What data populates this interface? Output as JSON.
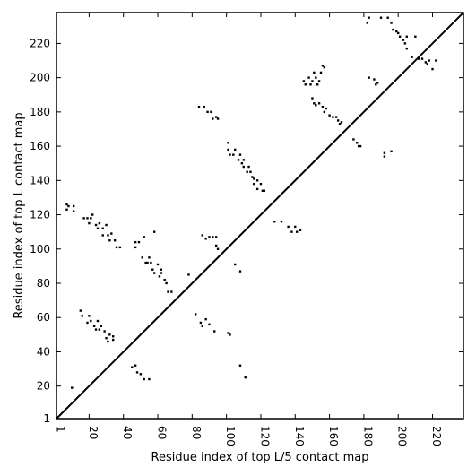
{
  "chart_data": {
    "type": "scatter",
    "title": "",
    "xlabel": "Residue index of top L/5 contact map",
    "ylabel": "Residue index of top L contact map",
    "xlim": [
      1,
      238
    ],
    "ylim": [
      1,
      238
    ],
    "x_ticks": [
      1,
      20,
      40,
      60,
      80,
      100,
      120,
      140,
      160,
      180,
      200,
      220
    ],
    "y_ticks": [
      1,
      20,
      40,
      60,
      80,
      100,
      120,
      140,
      160,
      180,
      200,
      220
    ],
    "grid": false,
    "legend": "none",
    "marker_color": "#000000",
    "diagonal": {
      "from": [
        1,
        1
      ],
      "to": [
        238,
        238
      ]
    },
    "series": [
      {
        "points_upper_left": [
          [
            7,
            126
          ],
          [
            7,
            123
          ],
          [
            8,
            125
          ],
          [
            11,
            125
          ],
          [
            11,
            122
          ],
          [
            17,
            118
          ],
          [
            19,
            118
          ],
          [
            20,
            115
          ],
          [
            21,
            118
          ],
          [
            22,
            120
          ],
          [
            24,
            114
          ],
          [
            25,
            112
          ],
          [
            26,
            115
          ],
          [
            28,
            112
          ],
          [
            28,
            108
          ],
          [
            30,
            114
          ],
          [
            31,
            108
          ],
          [
            32,
            105
          ],
          [
            33,
            109
          ],
          [
            35,
            105
          ],
          [
            36,
            101
          ],
          [
            38,
            101
          ],
          [
            47,
            104
          ],
          [
            47,
            101
          ],
          [
            49,
            104
          ],
          [
            51,
            95
          ],
          [
            52,
            107
          ],
          [
            53,
            92
          ],
          [
            54,
            92
          ],
          [
            55,
            95
          ],
          [
            56,
            92
          ],
          [
            57,
            88
          ],
          [
            58,
            86
          ],
          [
            58,
            110
          ],
          [
            60,
            91
          ],
          [
            61,
            84
          ],
          [
            62,
            86
          ],
          [
            62,
            88
          ],
          [
            64,
            82
          ],
          [
            65,
            80
          ],
          [
            66,
            75
          ],
          [
            68,
            75
          ],
          [
            84,
            183
          ],
          [
            87,
            183
          ],
          [
            89,
            180
          ],
          [
            91,
            180
          ],
          [
            92,
            176
          ],
          [
            94,
            177
          ],
          [
            95,
            176
          ],
          [
            86,
            108
          ],
          [
            88,
            106
          ],
          [
            90,
            107
          ],
          [
            92,
            107
          ],
          [
            94,
            107
          ],
          [
            94,
            102
          ],
          [
            95,
            100
          ],
          [
            101,
            162
          ],
          [
            101,
            158
          ],
          [
            102,
            155
          ],
          [
            104,
            155
          ],
          [
            105,
            158
          ],
          [
            107,
            152
          ],
          [
            108,
            155
          ],
          [
            109,
            150
          ],
          [
            110,
            152
          ],
          [
            110,
            148
          ],
          [
            112,
            145
          ],
          [
            113,
            148
          ],
          [
            114,
            145
          ],
          [
            115,
            142
          ],
          [
            116,
            141
          ],
          [
            116,
            138
          ],
          [
            118,
            140
          ],
          [
            118,
            135
          ],
          [
            120,
            138
          ],
          [
            121,
            134
          ],
          [
            122,
            134
          ],
          [
            145,
            198
          ],
          [
            146,
            196
          ],
          [
            148,
            200
          ],
          [
            149,
            196
          ],
          [
            150,
            198
          ],
          [
            151,
            203
          ],
          [
            152,
            200
          ],
          [
            153,
            196
          ],
          [
            154,
            198
          ],
          [
            155,
            203
          ],
          [
            156,
            207
          ],
          [
            157,
            206
          ],
          [
            150,
            188
          ],
          [
            151,
            185
          ],
          [
            152,
            184
          ],
          [
            154,
            185
          ],
          [
            156,
            183
          ],
          [
            157,
            180
          ],
          [
            158,
            182
          ],
          [
            160,
            178
          ],
          [
            162,
            177
          ],
          [
            164,
            177
          ],
          [
            165,
            175
          ],
          [
            166,
            173
          ],
          [
            167,
            174
          ],
          [
            182,
            232
          ],
          [
            183,
            235
          ],
          [
            183,
            200
          ],
          [
            186,
            199
          ],
          [
            187,
            196
          ],
          [
            188,
            197
          ],
          [
            190,
            235
          ],
          [
            194,
            235
          ],
          [
            196,
            232
          ],
          [
            197,
            228
          ],
          [
            199,
            227
          ],
          [
            200,
            226
          ],
          [
            201,
            224
          ],
          [
            203,
            222
          ],
          [
            204,
            220
          ],
          [
            205,
            217
          ],
          [
            205,
            224
          ],
          [
            210,
            224
          ],
          [
            208,
            212
          ],
          [
            212,
            211
          ],
          [
            214,
            211
          ],
          [
            216,
            209
          ],
          [
            217,
            208
          ],
          [
            220,
            205
          ],
          [
            218,
            210
          ],
          [
            222,
            210
          ]
        ]
      },
      {
        "points_lower_right": [
          [
            10,
            19
          ],
          [
            15,
            64
          ],
          [
            16,
            61
          ],
          [
            19,
            57
          ],
          [
            20,
            61
          ],
          [
            21,
            58
          ],
          [
            23,
            55
          ],
          [
            24,
            53
          ],
          [
            25,
            58
          ],
          [
            26,
            53
          ],
          [
            27,
            55
          ],
          [
            29,
            52
          ],
          [
            30,
            48
          ],
          [
            31,
            46
          ],
          [
            32,
            50
          ],
          [
            34,
            47
          ],
          [
            34,
            49
          ],
          [
            45,
            31
          ],
          [
            47,
            32
          ],
          [
            48,
            28
          ],
          [
            50,
            27
          ],
          [
            52,
            24
          ],
          [
            55,
            24
          ],
          [
            78,
            85
          ],
          [
            82,
            62
          ],
          [
            85,
            57
          ],
          [
            86,
            55
          ],
          [
            88,
            59
          ],
          [
            90,
            56
          ],
          [
            93,
            52
          ],
          [
            101,
            51
          ],
          [
            102,
            50
          ],
          [
            105,
            91
          ],
          [
            108,
            87
          ],
          [
            108,
            32
          ],
          [
            111,
            25
          ],
          [
            128,
            116
          ],
          [
            132,
            116
          ],
          [
            136,
            113
          ],
          [
            138,
            110
          ],
          [
            140,
            113
          ],
          [
            141,
            110
          ],
          [
            143,
            111
          ],
          [
            174,
            164
          ],
          [
            176,
            162
          ],
          [
            177,
            160
          ],
          [
            178,
            160
          ],
          [
            192,
            156
          ],
          [
            192,
            154
          ],
          [
            196,
            157
          ]
        ]
      }
    ]
  }
}
